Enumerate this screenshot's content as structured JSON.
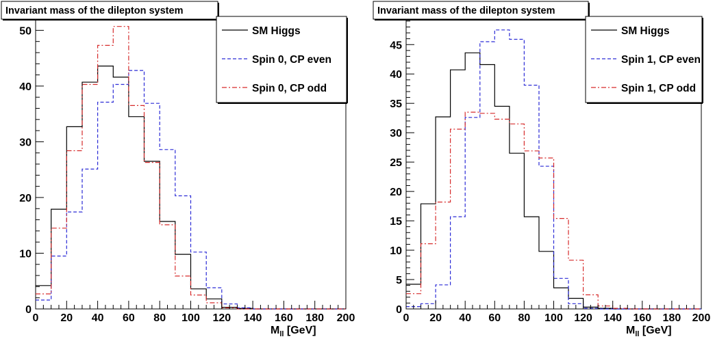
{
  "colors": {
    "sm": "#000000",
    "cp_even": "#2a2ad6",
    "cp_odd": "#d62a2a",
    "frame": "#000000",
    "background": "#ffffff"
  },
  "chart_data": [
    {
      "type": "histogram",
      "title": "Invariant mass of the dilepton system",
      "xlabel": "M_{ll} [GeV]",
      "xlabel_main": "M",
      "xlabel_sub": "ll",
      "xlabel_unit": "[GeV]",
      "ylabel": "",
      "xlim": [
        0,
        200
      ],
      "ylim": [
        0,
        52.5
      ],
      "x_ticks": [
        0,
        20,
        40,
        60,
        80,
        100,
        120,
        140,
        160,
        180,
        200
      ],
      "y_ticks": [
        0,
        10,
        20,
        30,
        40,
        50
      ],
      "bin_edges": [
        0,
        10,
        20,
        30,
        40,
        50,
        60,
        70,
        80,
        90,
        100,
        110,
        120,
        130,
        140,
        150,
        160,
        170,
        180,
        190,
        200
      ],
      "legend_position": "top-right",
      "series": [
        {
          "name": "SM Higgs",
          "style": "solid",
          "color_key": "sm",
          "values": [
            4.2,
            17.9,
            32.7,
            40.7,
            43.6,
            41.6,
            34.5,
            26.5,
            15.7,
            9.8,
            3.6,
            1.8,
            0.3,
            0.1,
            0,
            0,
            0,
            0,
            0,
            0
          ]
        },
        {
          "name": "Spin 0, CP even",
          "style": "dashed",
          "color_key": "cp_even",
          "values": [
            1.6,
            9.5,
            17.4,
            25.1,
            37.1,
            40.3,
            42.8,
            36.9,
            28.6,
            20.3,
            10.2,
            3.8,
            0.9,
            0.2,
            0,
            0,
            0,
            0,
            0,
            0
          ]
        },
        {
          "name": "Spin 0, CP odd",
          "style": "dashdot",
          "color_key": "cp_odd",
          "values": [
            2.7,
            14.5,
            28.4,
            40.3,
            47.3,
            50.7,
            36.5,
            26.3,
            15.1,
            5.9,
            2.5,
            1.1,
            0.2,
            0,
            0,
            0,
            0,
            0,
            0,
            0
          ]
        }
      ]
    },
    {
      "type": "histogram",
      "title": "Invariant mass of the dilepton system",
      "xlabel": "M_{ll} [GeV]",
      "xlabel_main": "M",
      "xlabel_sub": "ll",
      "xlabel_unit": "[GeV]",
      "ylabel": "",
      "xlim": [
        0,
        200
      ],
      "ylim": [
        0,
        49.8
      ],
      "x_ticks": [
        0,
        20,
        40,
        60,
        80,
        100,
        120,
        140,
        160,
        180,
        200
      ],
      "y_ticks": [
        0,
        5,
        10,
        15,
        20,
        25,
        30,
        35,
        40,
        45
      ],
      "bin_edges": [
        0,
        10,
        20,
        30,
        40,
        50,
        60,
        70,
        80,
        90,
        100,
        110,
        120,
        130,
        140,
        150,
        160,
        170,
        180,
        190,
        200
      ],
      "legend_position": "top-right",
      "series": [
        {
          "name": "SM Higgs",
          "style": "solid",
          "color_key": "sm",
          "values": [
            4.2,
            17.9,
            32.7,
            40.7,
            43.6,
            41.6,
            34.5,
            26.5,
            15.7,
            9.8,
            3.6,
            1.8,
            0.3,
            0.1,
            0,
            0,
            0,
            0,
            0,
            0
          ]
        },
        {
          "name": "Spin 1, CP even",
          "style": "dashed",
          "color_key": "cp_even",
          "values": [
            0.4,
            0.9,
            4.1,
            15.7,
            32.6,
            45.5,
            47.5,
            45.9,
            38.1,
            24.3,
            5.2,
            0.9,
            0.1,
            0,
            0,
            0,
            0,
            0,
            0,
            0
          ]
        },
        {
          "name": "Spin 1, CP odd",
          "style": "dashdot",
          "color_key": "cp_odd",
          "values": [
            2.6,
            11.1,
            18.2,
            30.6,
            33.5,
            33.3,
            32.3,
            31.5,
            26.9,
            25.7,
            15.4,
            8.3,
            2.4,
            0.5,
            0.1,
            0,
            0,
            0,
            0,
            0
          ]
        }
      ]
    }
  ]
}
